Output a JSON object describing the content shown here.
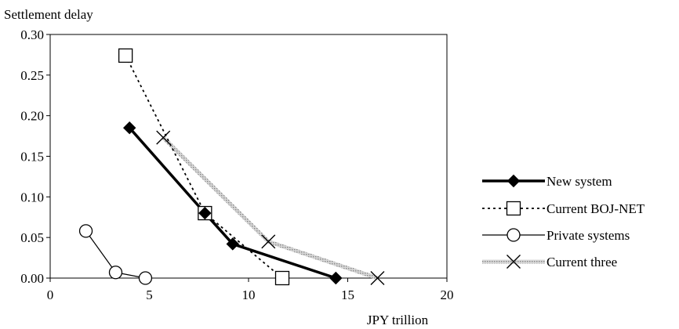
{
  "chart_data": {
    "type": "line",
    "ylabel": "Settlement delay",
    "xlabel": "JPY trillion",
    "xlim": [
      0,
      20
    ],
    "ylim": [
      0,
      0.3
    ],
    "x_ticks": [
      "0",
      "5",
      "10",
      "15",
      "20"
    ],
    "y_ticks": [
      "0.00",
      "0.05",
      "0.10",
      "0.15",
      "0.20",
      "0.25",
      "0.30"
    ],
    "grid": false,
    "legend_position": "right",
    "series": [
      {
        "name": "New system",
        "marker": "diamond-filled",
        "line": "solid-thick",
        "color": "#000000",
        "points": [
          [
            4.0,
            0.185
          ],
          [
            7.8,
            0.08
          ],
          [
            9.2,
            0.042
          ],
          [
            14.4,
            0.0
          ]
        ]
      },
      {
        "name": "Current BOJ-NET",
        "marker": "square-open",
        "line": "dotted",
        "color": "#000000",
        "points": [
          [
            3.8,
            0.274
          ],
          [
            7.8,
            0.08
          ],
          [
            11.7,
            0.0
          ]
        ]
      },
      {
        "name": "Private systems",
        "marker": "circle-open",
        "line": "solid-thin",
        "color": "#000000",
        "points": [
          [
            1.8,
            0.058
          ],
          [
            3.3,
            0.007
          ],
          [
            4.8,
            0.0
          ]
        ]
      },
      {
        "name": "Current three",
        "marker": "cross",
        "line": "hatched-gray",
        "color": "#b4b4b4",
        "points": [
          [
            5.7,
            0.173
          ],
          [
            11.0,
            0.045
          ],
          [
            16.5,
            0.0
          ]
        ]
      }
    ]
  }
}
